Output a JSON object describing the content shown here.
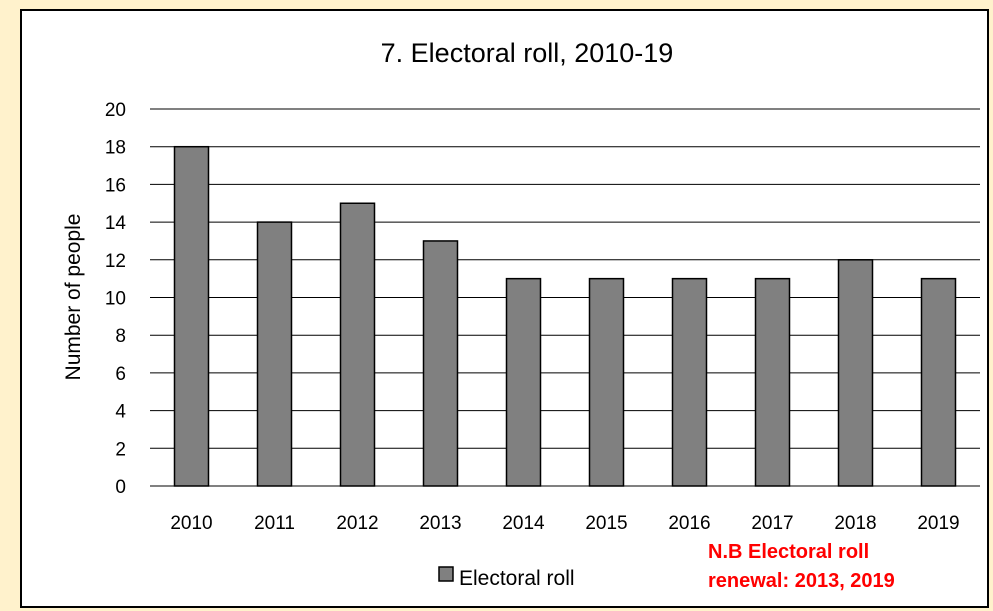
{
  "chart_data": {
    "type": "bar",
    "title": "7. Electoral roll, 2010-19",
    "xlabel": "",
    "ylabel": "Number of people",
    "categories": [
      "2010",
      "2011",
      "2012",
      "2013",
      "2014",
      "2015",
      "2016",
      "2017",
      "2018",
      "2019"
    ],
    "series": [
      {
        "name": "Electoral roll",
        "values": [
          18,
          14,
          15,
          13,
          11,
          11,
          11,
          11,
          12,
          11
        ]
      }
    ],
    "ylim": [
      0,
      20
    ],
    "yticks": [
      "0",
      "2",
      "4",
      "6",
      "8",
      "10",
      "12",
      "14",
      "16",
      "18",
      "20"
    ],
    "grid": true,
    "legend_position": "bottom",
    "annotation": {
      "lines": [
        "N.B Electoral roll",
        "renewal: 2013, 2019"
      ],
      "color": "#FF0000"
    },
    "colors": {
      "bar_fill": "#808080",
      "bar_stroke": "#000000",
      "grid": "#000000",
      "background": "#FFF2CC"
    }
  }
}
